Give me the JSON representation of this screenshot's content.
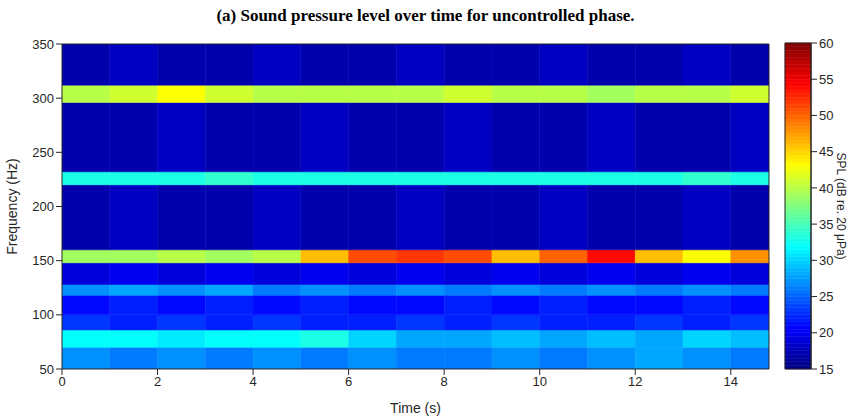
{
  "chart_data": {
    "type": "heatmap",
    "title": "(a) Sound pressure level over time for uncontrolled phase.",
    "x_label": "Time (s)",
    "y_label": "Frequency (Hz)",
    "xlim": [
      0,
      14.8
    ],
    "xticks": [
      0,
      2,
      4,
      6,
      8,
      10,
      12,
      14
    ],
    "ylim": [
      50,
      350
    ],
    "yticks": [
      50,
      100,
      150,
      200,
      250,
      300,
      350
    ],
    "x_bins": [
      0,
      1,
      2,
      3,
      4,
      5,
      6,
      7,
      8,
      9,
      10,
      11,
      12,
      13,
      14,
      14.8
    ],
    "y_bins": [
      50,
      70,
      86,
      100,
      118,
      128,
      148,
      160,
      220,
      232,
      296,
      312,
      350
    ],
    "cells": [
      [
        27,
        26,
        27,
        26,
        27,
        26,
        27,
        26,
        26,
        27,
        26,
        27,
        28,
        27,
        26
      ],
      [
        32,
        32,
        31,
        32,
        32,
        33,
        30,
        28,
        28,
        29,
        28,
        29,
        28,
        30,
        29
      ],
      [
        23,
        22,
        23,
        22,
        23,
        22,
        22,
        23,
        22,
        23,
        22,
        22,
        23,
        22,
        23
      ],
      [
        21,
        22,
        21,
        22,
        21,
        22,
        21,
        21,
        22,
        21,
        22,
        21,
        21,
        22,
        21
      ],
      [
        27,
        28,
        27,
        28,
        26,
        27,
        26,
        27,
        26,
        27,
        26,
        27,
        26,
        27,
        26
      ],
      [
        19,
        20,
        19,
        20,
        19,
        20,
        19,
        20,
        19,
        20,
        19,
        20,
        19,
        20,
        19
      ],
      [
        39,
        39,
        40,
        39,
        40,
        46,
        51,
        52,
        51,
        46,
        50,
        54,
        46,
        43,
        48
      ],
      [
        17,
        18,
        17,
        17,
        18,
        17,
        17,
        18,
        17,
        17,
        18,
        17,
        17,
        18,
        17
      ],
      [
        33,
        33,
        33,
        34,
        33,
        33,
        33,
        33,
        33,
        33,
        33,
        33,
        33,
        34,
        33
      ],
      [
        17,
        17,
        18,
        17,
        17,
        18,
        17,
        17,
        18,
        17,
        17,
        18,
        17,
        17,
        18
      ],
      [
        40,
        41,
        43,
        41,
        40,
        40,
        40,
        40,
        41,
        40,
        40,
        39,
        40,
        40,
        41
      ],
      [
        17,
        18,
        17,
        17,
        18,
        17,
        17,
        18,
        17,
        17,
        18,
        17,
        17,
        18,
        17
      ]
    ],
    "colorbar": {
      "label": "SPL (dB re. 20 μPa)",
      "range": [
        15,
        60
      ],
      "ticks": [
        15,
        20,
        25,
        30,
        35,
        40,
        45,
        50,
        55,
        60
      ]
    }
  }
}
